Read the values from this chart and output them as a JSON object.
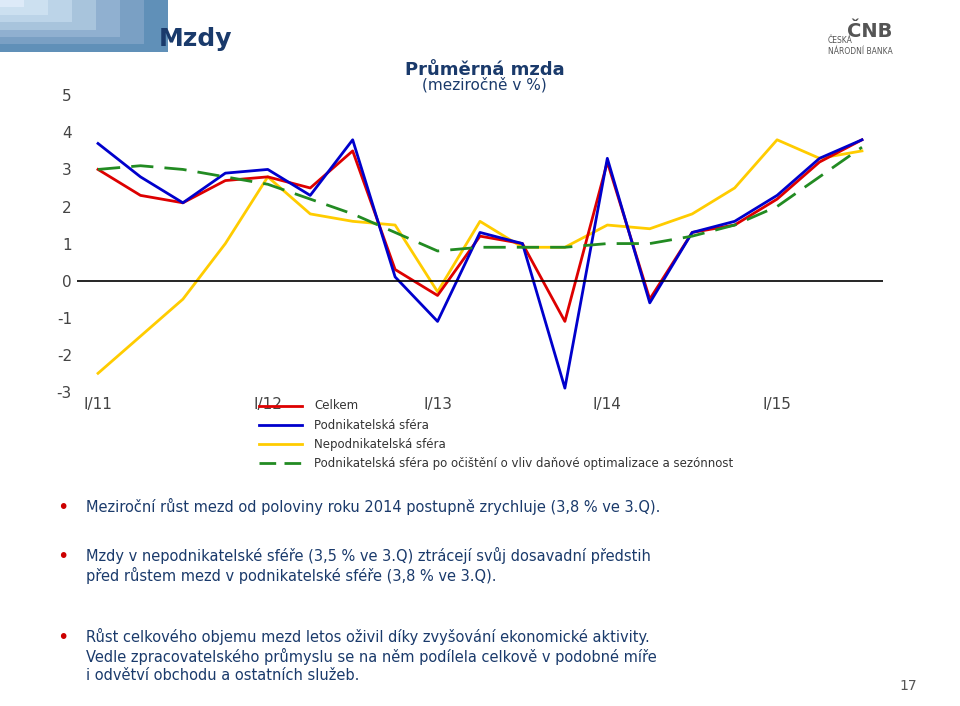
{
  "title_line1": "Průměrná mzda",
  "title_line2": "(meziročně v %)",
  "xtick_labels": [
    "I/11",
    "I/12",
    "I/13",
    "I/14",
    "I/15"
  ],
  "ylim": [
    -3,
    5
  ],
  "yticks": [
    -3,
    -2,
    -1,
    0,
    1,
    2,
    3,
    4,
    5
  ],
  "x_positions": [
    0,
    1,
    2,
    3,
    4,
    5,
    6,
    7,
    8,
    9,
    10,
    11,
    12,
    13,
    14,
    15,
    16,
    17,
    18
  ],
  "celkem": [
    3.0,
    2.3,
    2.1,
    2.7,
    2.8,
    2.5,
    3.5,
    0.3,
    -0.4,
    1.2,
    1.0,
    -1.1,
    3.2,
    -0.5,
    1.3,
    1.5,
    2.2,
    3.2,
    3.8
  ],
  "podnikatelska": [
    3.7,
    2.8,
    2.1,
    2.9,
    3.0,
    2.3,
    3.8,
    0.1,
    -1.1,
    1.3,
    1.0,
    -2.9,
    3.3,
    -0.6,
    1.3,
    1.6,
    2.3,
    3.3,
    3.8
  ],
  "nepodnikatelska": [
    -2.5,
    -1.5,
    -0.5,
    1.0,
    2.8,
    1.8,
    1.6,
    1.5,
    -0.3,
    1.6,
    0.9,
    0.9,
    1.5,
    1.4,
    1.8,
    2.5,
    3.8,
    3.3,
    3.5
  ],
  "ocistena": [
    3.0,
    3.1,
    3.0,
    2.8,
    2.6,
    2.2,
    1.8,
    1.3,
    0.8,
    0.9,
    0.9,
    0.9,
    1.0,
    1.0,
    1.2,
    1.5,
    2.0,
    2.8,
    3.6
  ],
  "x_tick_positions": [
    0,
    4,
    8,
    12,
    16
  ],
  "color_celkem": "#dd0000",
  "color_podnikatelska": "#0000cc",
  "color_nepodnikatelska": "#ffcc00",
  "color_ocistena": "#228b22",
  "legend_celkem": "Celkem",
  "legend_podnikatelska": "Podnikatelská sféra",
  "legend_nepodnikatelska": "Nepodnikatelská sféra",
  "legend_ocistena": "Podnikatelská sféra po očištění o vliv daňové optimalizace a sezónnost",
  "header_color": "#1a3a6b",
  "background_color": "#ffffff",
  "bullet_texts": [
    "Meziroční růst mezd od poloviny roku 2014 postupně zrychluje (3,8 % ve 3.Q).",
    "Mzdy v nepodnikatelské sféře (3,5 % ve 3.Q) ztrácejí svůj dosavadní předstih\npřed růstem mezd v podnikatelské sféře (3,8 % ve 3.Q).",
    "Růst celkového objemu mezd letos oživil díky zvyšování ekonomické aktivity.\nVedle zpracovatelského průmyslu se na něm podílela celkově v podobné míře\ni odvětví obchodu a ostatních služeb."
  ],
  "page_number": "17",
  "mzdy_text": "Mzdy",
  "header_bg": "#c8d4e4",
  "chart_lw": 2.0
}
